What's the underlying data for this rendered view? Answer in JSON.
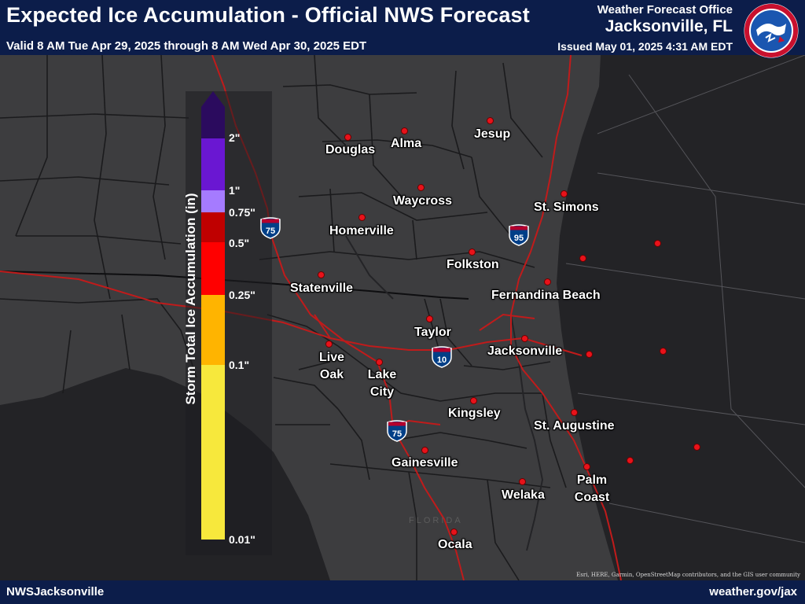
{
  "header": {
    "title": "Expected Ice Accumulation - Official NWS Forecast",
    "valid_period": "Valid 8 AM Tue Apr 29, 2025 through 8 AM Wed Apr 30, 2025 EDT",
    "office_label": "Weather Forecast Office",
    "office_name": "Jacksonville, FL",
    "issued": "Issued May 01, 2025 4:31 AM EDT",
    "logo_icon": "nws-logo-icon"
  },
  "legend": {
    "title": "Storm Total Ice Accumulation (in)",
    "ticks": [
      "2\"",
      "1\"",
      "0.75\"",
      "0.5\"",
      "0.25\"",
      "0.1\"",
      "0.01\""
    ],
    "colors": [
      "#2b0b5e",
      "#6a17d2",
      "#a57bff",
      "#bf0000",
      "#ff0000",
      "#ffb400",
      "#f7e83c"
    ]
  },
  "cities": [
    "Douglas",
    "Alma",
    "Jesup",
    "Waycross",
    "St. Simons",
    "Homerville",
    "Folkston",
    "Statenville",
    "Fernandina Beach",
    "Taylor",
    "Live Oak",
    "Jacksonville",
    "Lake City",
    "Kingsley",
    "St. Augustine",
    "Gainesville",
    "Palm Coast",
    "Welaka",
    "Ocala"
  ],
  "highways": [
    "75",
    "95",
    "10",
    "75"
  ],
  "state_label": "FLORIDA",
  "attribution": "Esri, HERE, Garmin, OpenStreetMap contributors, and the GIS user community",
  "footer": {
    "left": "NWSJacksonville",
    "right": "weather.gov/jax"
  },
  "colors": {
    "banner": "#0c1d4a",
    "land": "#3d3d3f",
    "water": "#232326",
    "county_line": "#1b1b1d",
    "highway": "#c01b1b",
    "city_dot": "#e8121a"
  }
}
